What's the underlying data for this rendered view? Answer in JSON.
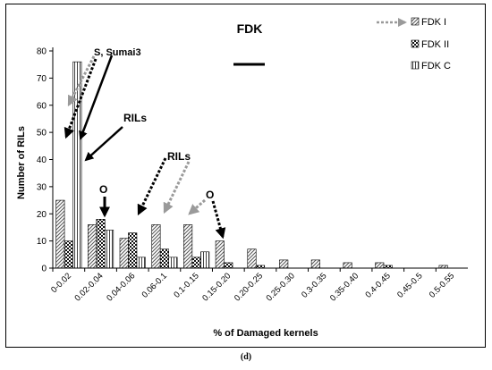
{
  "chart_data": {
    "type": "bar",
    "title": "FDK",
    "xlabel": "% of Damaged  kernels",
    "ylabel": "Number of RILs",
    "ylim": [
      0,
      80
    ],
    "yticks": [
      0,
      10,
      20,
      30,
      40,
      50,
      60,
      70,
      80
    ],
    "grid": false,
    "legend_position": "top-right",
    "categories": [
      "0-0.02",
      "0.02-0.04",
      "0.04-0.06",
      "0.06-0.1",
      "0.1-0.15",
      "0.15-0.20",
      "0.20-0.25",
      "0.25-0.30",
      "0.3-0.35",
      "0.35-0.40",
      "0.4-0.45",
      "0.45-0.5",
      "0.5-0.55"
    ],
    "series": [
      {
        "name": "FDK I",
        "pattern": "diagonal-hatch",
        "values": [
          25,
          16,
          11,
          16,
          16,
          10,
          7,
          3,
          3,
          2,
          2,
          0,
          1
        ]
      },
      {
        "name": "FDK II",
        "pattern": "checker",
        "values": [
          10,
          18,
          13,
          7,
          4,
          2,
          1,
          0,
          0,
          0,
          1,
          0,
          0
        ]
      },
      {
        "name": "FDK C",
        "pattern": "vertical-stripe",
        "values": [
          76,
          14,
          4,
          4,
          6,
          0,
          0,
          0,
          0,
          0,
          0,
          0,
          0
        ]
      }
    ],
    "annotations": [
      {
        "text": "S, Sumai3",
        "at_category": "0-0.02"
      },
      {
        "text": "RILs",
        "at_category": "0-0.02"
      },
      {
        "text": "RILs",
        "at_category": "0.06-0.1"
      },
      {
        "text": "O",
        "at_category": "0.02-0.04"
      },
      {
        "text": "O",
        "at_category": "0.1-0.15"
      }
    ]
  },
  "caption": "(d)"
}
